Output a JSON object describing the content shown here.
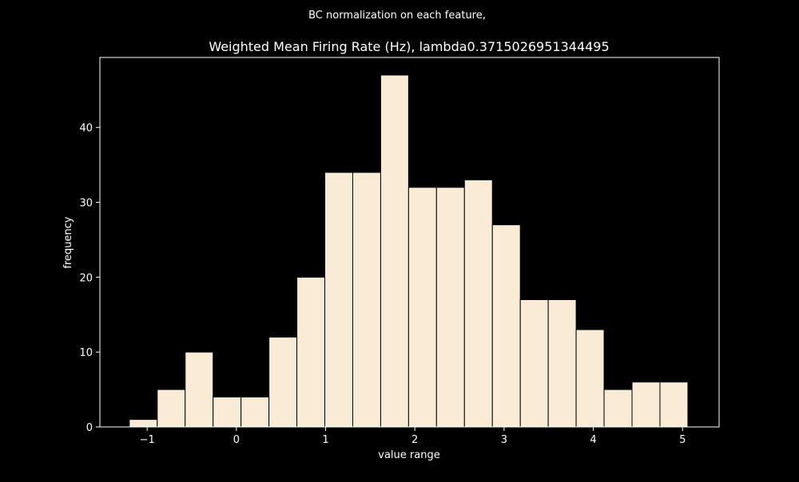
{
  "figure": {
    "suptitle": "BC normalization on each feature,"
  },
  "chart_data": {
    "type": "bar",
    "title": "Weighted Mean Firing Rate (Hz), lambda0.3715026951344495",
    "xlabel": "value range",
    "ylabel": "frequency",
    "xlim": [
      -1.53,
      5.41
    ],
    "ylim": [
      0,
      49.35
    ],
    "xticks": [
      -1,
      0,
      1,
      2,
      3,
      4,
      5
    ],
    "yticks": [
      0,
      10,
      20,
      30,
      40
    ],
    "bin_edges": [
      -1.2,
      -0.887,
      -0.574,
      -0.261,
      0.052,
      0.365,
      0.678,
      0.991,
      1.304,
      1.617,
      1.93,
      2.243,
      2.556,
      2.869,
      3.182,
      3.495,
      3.808,
      4.121,
      4.434,
      4.747,
      5.06
    ],
    "values": [
      1,
      5,
      10,
      4,
      4,
      12,
      20,
      34,
      34,
      47,
      32,
      32,
      33,
      27,
      17,
      17,
      13,
      5,
      6,
      6
    ],
    "grid": false,
    "colors": {
      "background": "#000000",
      "bar_fill": "#faebd7",
      "bar_edge": "#000000",
      "axes": "#ffffff",
      "text": "#ffffff"
    }
  }
}
